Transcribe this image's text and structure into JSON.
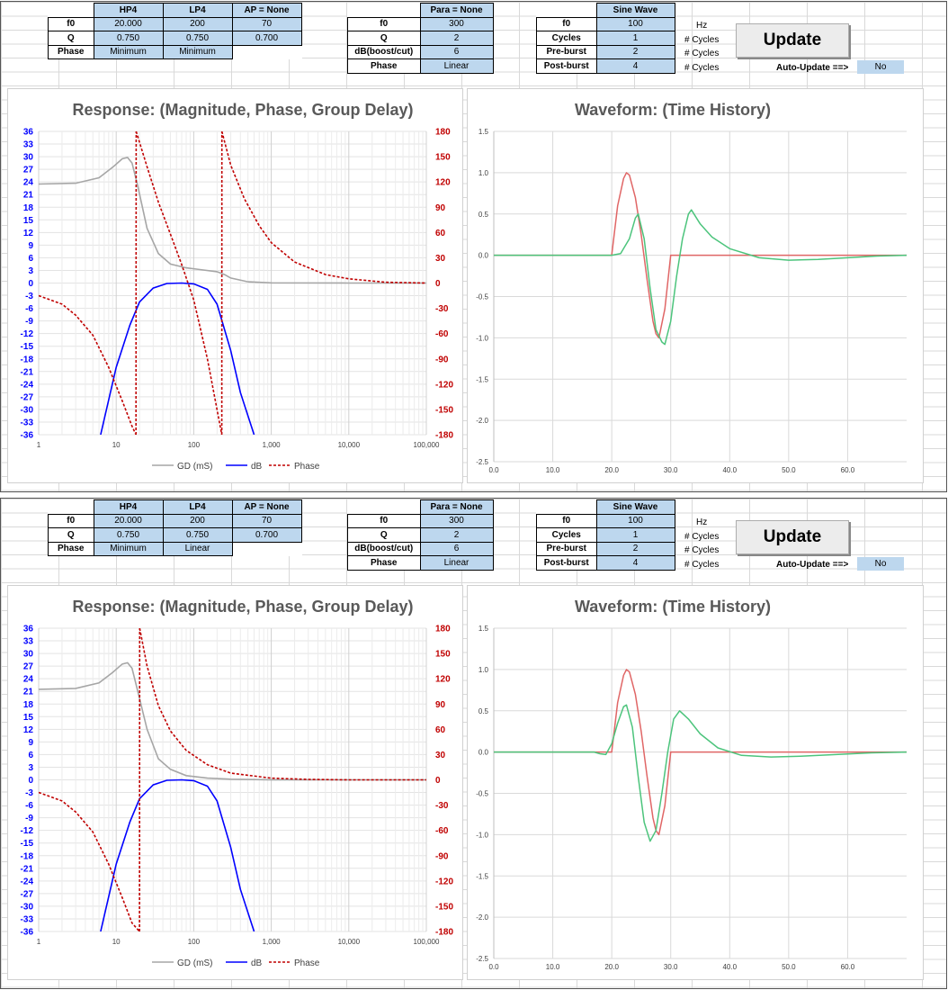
{
  "update_label": "Update",
  "auto_update_label": "Auto-Update ==>",
  "auto_update_value": "No",
  "units": {
    "hz": "Hz",
    "cycles": "# Cycles"
  },
  "colors": {
    "gd": "#a6a6a6",
    "db": "#0000ff",
    "phase": "#c00000",
    "red_wave": "#e06666",
    "green_wave": "#4cc47c",
    "cell_fill": "#bdd7ee",
    "left_axis": "#0000ff",
    "right_axis": "#c00000"
  },
  "panels": [
    {
      "filters": {
        "headers": [
          "HP4",
          "LP4",
          "AP = None"
        ],
        "rows": [
          {
            "label": "f0",
            "values": [
              "20.000",
              "200",
              "70"
            ]
          },
          {
            "label": "Q",
            "values": [
              "0.750",
              "0.750",
              "0.700"
            ]
          },
          {
            "label": "Phase",
            "values": [
              "Minimum",
              "Minimum"
            ]
          }
        ]
      },
      "para": {
        "header": "Para = None",
        "rows": [
          {
            "label": "f0",
            "value": "300"
          },
          {
            "label": "Q",
            "value": "2"
          },
          {
            "label": "dB(boost/cut)",
            "value": "6"
          },
          {
            "label": "Phase",
            "value": "Linear"
          }
        ]
      },
      "sine": {
        "header": "Sine Wave",
        "rows": [
          {
            "label": "f0",
            "value": "100",
            "unit": "Hz"
          },
          {
            "label": "Cycles",
            "value": "1",
            "unit": "# Cycles"
          },
          {
            "label": "Pre-burst",
            "value": "2",
            "unit": "# Cycles"
          },
          {
            "label": "Post-burst",
            "value": "4",
            "unit": "# Cycles"
          }
        ]
      },
      "response_chart": {
        "type": "line",
        "title": "Response: (Magnitude, Phase, Group Delay)",
        "x_scale": "log",
        "xlim": [
          1,
          100000
        ],
        "x_tick_labels": [
          "1",
          "10",
          "100",
          "1,000",
          "10,000",
          "100,000"
        ],
        "ylim_left": [
          -36,
          36
        ],
        "y_left_ticks": [
          "36",
          "33",
          "30",
          "27",
          "24",
          "21",
          "18",
          "15",
          "12",
          "9",
          "6",
          "3",
          "0",
          "-3",
          "-6",
          "-9",
          "-12",
          "-15",
          "-18",
          "-21",
          "-24",
          "-27",
          "-30",
          "-33",
          "-36"
        ],
        "ylim_right": [
          -180,
          180
        ],
        "y_right_ticks": [
          "180",
          "150",
          "120",
          "90",
          "60",
          "30",
          "0",
          "-30",
          "-60",
          "-90",
          "-120",
          "-150",
          "-180"
        ],
        "legend_position": "bottom",
        "series": [
          {
            "name": "GD (mS)",
            "axis": "left",
            "style": "solid",
            "x": [
              1,
              3,
              6,
              9,
              12,
              14,
              16,
              19,
              25,
              35,
              50,
              80,
              120,
              200,
              250,
              300,
              500,
              1000,
              10000,
              100000
            ],
            "y": [
              23.5,
              23.7,
              25,
              27.5,
              29.5,
              29.8,
              28.5,
              23,
              13,
              7,
              4.5,
              3.6,
              3.2,
              2.7,
              2,
              1.2,
              0.3,
              0.05,
              0,
              0
            ]
          },
          {
            "name": "dB",
            "axis": "left",
            "style": "solid",
            "x": [
              6.3,
              10,
              15,
              20,
              30,
              45,
              70,
              100,
              150,
              200,
              300,
              400,
              600
            ],
            "y": [
              -36,
              -20,
              -10,
              -4.5,
              -1.2,
              -0.1,
              0,
              -0.2,
              -1.5,
              -5,
              -16,
              -26,
              -36
            ]
          },
          {
            "name": "Phase",
            "axis": "right",
            "style": "dashed",
            "segments": [
              {
                "x": [
                  1,
                  2,
                  3,
                  5,
                  8,
                  12,
                  16,
                  18
                ],
                "y": [
                  -15,
                  -25,
                  -38,
                  -62,
                  -100,
                  -140,
                  -170,
                  -180
                ]
              },
              {
                "x": [
                  18,
                  18.1
                ],
                "y": [
                  -180,
                  180
                ]
              },
              {
                "x": [
                  18.1,
                  25,
                  35,
                  50,
                  70,
                  100,
                  150,
                  230
                ],
                "y": [
                  180,
                  138,
                  96,
                  58,
                  22,
                  -20,
                  -90,
                  -180
                ]
              },
              {
                "x": [
                  230,
                  231
                ],
                "y": [
                  -180,
                  180
                ]
              },
              {
                "x": [
                  231,
                  300,
                  450,
                  700,
                  1000,
                  2000,
                  5000,
                  10000,
                  30000,
                  100000
                ],
                "y": [
                  180,
                  140,
                  100,
                  68,
                  48,
                  25,
                  10,
                  5,
                  1,
                  0
                ]
              }
            ]
          }
        ]
      },
      "waveform_chart": {
        "type": "line",
        "title": "Waveform: (Time History)",
        "xlim": [
          0,
          70
        ],
        "x_tick_labels": [
          "0.0",
          "10.0",
          "20.0",
          "30.0",
          "40.0",
          "50.0",
          "60.0"
        ],
        "ylim": [
          -2.5,
          1.5
        ],
        "y_tick_labels": [
          "1.5",
          "1.0",
          "0.5",
          "0.0",
          "-0.5",
          "-1.0",
          "-1.5",
          "-2.0",
          "-2.5"
        ],
        "series": [
          {
            "color": "red",
            "x": [
              0,
              20,
              21,
              22,
              22.5,
              23,
              24,
              25,
              26,
              27,
              27.5,
              28,
              29,
              30,
              70
            ],
            "y": [
              0,
              0,
              0.6,
              0.93,
              1.0,
              0.97,
              0.7,
              0.25,
              -0.3,
              -0.8,
              -0.95,
              -1.0,
              -0.65,
              0,
              0
            ]
          },
          {
            "color": "green",
            "x": [
              0,
              20,
              21.5,
              23,
              24,
              24.5,
              25.5,
              26.5,
              27.5,
              28.5,
              29,
              30,
              31,
              32,
              33,
              33.5,
              35,
              37,
              40,
              45,
              50,
              55,
              60,
              65,
              70
            ],
            "y": [
              0,
              0,
              0.02,
              0.2,
              0.45,
              0.5,
              0.2,
              -0.4,
              -0.9,
              -1.05,
              -1.08,
              -0.8,
              -0.25,
              0.2,
              0.5,
              0.55,
              0.38,
              0.22,
              0.08,
              -0.03,
              -0.06,
              -0.05,
              -0.03,
              -0.01,
              0
            ]
          }
        ]
      }
    },
    {
      "filters": {
        "headers": [
          "HP4",
          "LP4",
          "AP = None"
        ],
        "rows": [
          {
            "label": "f0",
            "values": [
              "20.000",
              "200",
              "70"
            ]
          },
          {
            "label": "Q",
            "values": [
              "0.750",
              "0.750",
              "0.700"
            ]
          },
          {
            "label": "Phase",
            "values": [
              "Minimum",
              "Linear"
            ]
          }
        ]
      },
      "para": {
        "header": "Para = None",
        "rows": [
          {
            "label": "f0",
            "value": "300"
          },
          {
            "label": "Q",
            "value": "2"
          },
          {
            "label": "dB(boost/cut)",
            "value": "6"
          },
          {
            "label": "Phase",
            "value": "Linear"
          }
        ]
      },
      "sine": {
        "header": "Sine Wave",
        "rows": [
          {
            "label": "f0",
            "value": "100",
            "unit": "Hz"
          },
          {
            "label": "Cycles",
            "value": "1",
            "unit": "# Cycles"
          },
          {
            "label": "Pre-burst",
            "value": "2",
            "unit": "# Cycles"
          },
          {
            "label": "Post-burst",
            "value": "4",
            "unit": "# Cycles"
          }
        ]
      },
      "response_chart": {
        "type": "line",
        "title": "Response: (Magnitude, Phase, Group Delay)",
        "x_scale": "log",
        "xlim": [
          1,
          100000
        ],
        "x_tick_labels": [
          "1",
          "10",
          "100",
          "1,000",
          "10,000",
          "100,000"
        ],
        "ylim_left": [
          -36,
          36
        ],
        "y_left_ticks": [
          "36",
          "33",
          "30",
          "27",
          "24",
          "21",
          "18",
          "15",
          "12",
          "9",
          "6",
          "3",
          "0",
          "-3",
          "-6",
          "-9",
          "-12",
          "-15",
          "-18",
          "-21",
          "-24",
          "-27",
          "-30",
          "-33",
          "-36"
        ],
        "ylim_right": [
          -180,
          180
        ],
        "y_right_ticks": [
          "180",
          "150",
          "120",
          "90",
          "60",
          "30",
          "0",
          "-30",
          "-60",
          "-90",
          "-120",
          "-150",
          "-180"
        ],
        "legend_position": "bottom",
        "series": [
          {
            "name": "GD (mS)",
            "axis": "left",
            "style": "solid",
            "x": [
              1,
              3,
              6,
              9,
              12,
              14,
              16,
              19,
              25,
              35,
              50,
              80,
              150,
              300,
              1000,
              10000,
              100000
            ],
            "y": [
              21.5,
              21.7,
              23,
              25.5,
              27.5,
              27.8,
              26.5,
              21,
              12,
              5,
              2.5,
              1.0,
              0.4,
              0.15,
              0.02,
              0,
              0
            ]
          },
          {
            "name": "dB",
            "axis": "left",
            "style": "solid",
            "x": [
              6.3,
              10,
              15,
              20,
              30,
              45,
              70,
              100,
              150,
              200,
              300,
              400,
              600
            ],
            "y": [
              -36,
              -20,
              -10,
              -4.5,
              -1.2,
              -0.1,
              0,
              -0.2,
              -1.5,
              -5,
              -16,
              -26,
              -36
            ]
          },
          {
            "name": "Phase",
            "axis": "right",
            "style": "dashed",
            "segments": [
              {
                "x": [
                  1,
                  2,
                  3,
                  5,
                  8,
                  12,
                  16,
                  20
                ],
                "y": [
                  -15,
                  -25,
                  -38,
                  -62,
                  -100,
                  -140,
                  -170,
                  -180
                ]
              },
              {
                "x": [
                  20,
                  20.1
                ],
                "y": [
                  -180,
                  180
                ]
              },
              {
                "x": [
                  20.1,
                  25,
                  35,
                  50,
                  80,
                  150,
                  300,
                  1000,
                  3000,
                  10000,
                  100000
                ],
                "y": [
                  180,
                  135,
                  88,
                  58,
                  35,
                  18,
                  8,
                  2,
                  0.5,
                  0,
                  0
                ]
              }
            ]
          }
        ]
      },
      "waveform_chart": {
        "type": "line",
        "title": "Waveform: (Time History)",
        "xlim": [
          0,
          70
        ],
        "x_tick_labels": [
          "0.0",
          "10.0",
          "20.0",
          "30.0",
          "40.0",
          "50.0",
          "60.0"
        ],
        "ylim": [
          -2.5,
          1.5
        ],
        "y_tick_labels": [
          "1.5",
          "1.0",
          "0.5",
          "0.0",
          "-0.5",
          "-1.0",
          "-1.5",
          "-2.0",
          "-2.5"
        ],
        "series": [
          {
            "color": "red",
            "x": [
              0,
              20,
              21,
              22,
              22.5,
              23,
              24,
              25,
              26,
              27,
              27.5,
              28,
              29,
              30,
              70
            ],
            "y": [
              0,
              0,
              0.6,
              0.93,
              1.0,
              0.97,
              0.7,
              0.25,
              -0.3,
              -0.8,
              -0.95,
              -1.0,
              -0.65,
              0,
              0
            ]
          },
          {
            "color": "green",
            "x": [
              0,
              17,
              18,
              19,
              20,
              21,
              22,
              22.5,
              23.5,
              24.5,
              25.5,
              26.5,
              27.5,
              28.5,
              29.5,
              30.5,
              31.5,
              33,
              35,
              38,
              42,
              47,
              52,
              58,
              64,
              70
            ],
            "y": [
              0,
              0,
              -0.02,
              -0.03,
              0.1,
              0.35,
              0.55,
              0.57,
              0.3,
              -0.3,
              -0.85,
              -1.08,
              -0.95,
              -0.5,
              0.0,
              0.4,
              0.5,
              0.4,
              0.22,
              0.05,
              -0.04,
              -0.06,
              -0.05,
              -0.03,
              -0.01,
              0
            ]
          }
        ]
      }
    }
  ],
  "legend": {
    "gd": "GD (mS)",
    "db": "dB",
    "phase": "Phase"
  }
}
